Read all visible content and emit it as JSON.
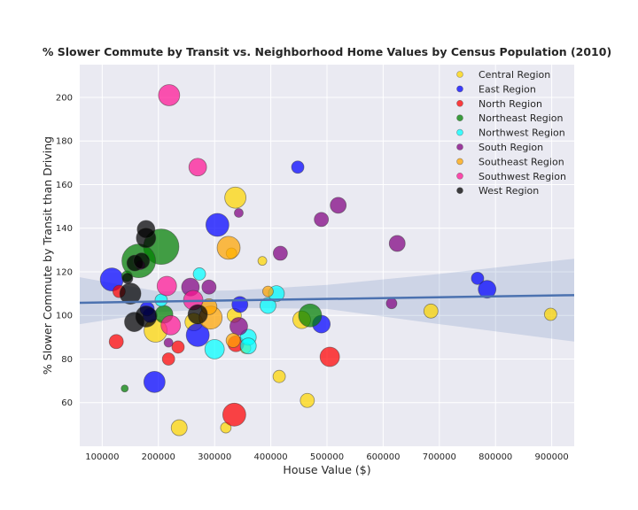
{
  "chart_data": {
    "type": "scatter",
    "title": "% Slower Commute by Transit vs. Neighborhood Home Values by Census Population (2010)",
    "xlabel": "House Value ($)",
    "ylabel": "% Slower Commute by Transit than Driving",
    "xlim": [
      60000,
      940000
    ],
    "ylim": [
      40,
      215
    ],
    "xticks": [
      100000,
      200000,
      300000,
      400000,
      500000,
      600000,
      700000,
      800000,
      900000
    ],
    "yticks": [
      60,
      80,
      100,
      120,
      140,
      160,
      180,
      200
    ],
    "grid": true,
    "legend_position": "top-right",
    "regression": {
      "x_start": 60000,
      "y_start": 105.8,
      "x_end": 940000,
      "y_end": 109.3,
      "ci_lower": [
        [
          60000,
          96
        ],
        [
          200000,
          101.5
        ],
        [
          340000,
          103.5
        ],
        [
          500000,
          103
        ],
        [
          700000,
          96
        ],
        [
          940000,
          88
        ]
      ],
      "ci_upper": [
        [
          60000,
          117.5
        ],
        [
          200000,
          111
        ],
        [
          340000,
          111.5
        ],
        [
          500000,
          114
        ],
        [
          700000,
          119
        ],
        [
          940000,
          126
        ]
      ]
    },
    "series": [
      {
        "name": "Central Region",
        "color": "#FFD700",
        "points": [
          [
            320000,
            48.5,
            6
          ],
          [
            237000,
            48.5,
            9
          ],
          [
            465000,
            61,
            8
          ],
          [
            415000,
            72,
            7
          ],
          [
            685000,
            102,
            8
          ],
          [
            898000,
            100.5,
            7
          ],
          [
            385000,
            125,
            5
          ],
          [
            355000,
            85,
            6
          ],
          [
            455000,
            98,
            10
          ],
          [
            195000,
            93,
            13
          ],
          [
            263000,
            97,
            10
          ],
          [
            330000,
            128.5,
            6
          ],
          [
            335000,
            100,
            8
          ],
          [
            337000,
            154,
            12
          ]
        ]
      },
      {
        "name": "East Region",
        "color": "#0000FF",
        "points": [
          [
            193000,
            69.5,
            12
          ],
          [
            270000,
            91,
            13
          ],
          [
            345000,
            105,
            9
          ],
          [
            490000,
            96,
            10
          ],
          [
            185000,
            100,
            8
          ],
          [
            180000,
            103,
            8
          ],
          [
            117000,
            116.5,
            13
          ],
          [
            305000,
            141.5,
            13
          ],
          [
            448000,
            168,
            7
          ],
          [
            768000,
            117,
            7
          ],
          [
            785000,
            112,
            10
          ]
        ]
      },
      {
        "name": "North Region",
        "color": "#FF0000",
        "points": [
          [
            335000,
            54.5,
            13
          ],
          [
            505000,
            81,
            11
          ],
          [
            218000,
            80,
            7
          ],
          [
            125000,
            88,
            8
          ],
          [
            235000,
            85.5,
            7
          ],
          [
            338000,
            87,
            9
          ],
          [
            130000,
            111,
            7
          ]
        ]
      },
      {
        "name": "Northeast Region",
        "color": "#008000",
        "points": [
          [
            140000,
            66.5,
            4
          ],
          [
            470000,
            100,
            13
          ],
          [
            210000,
            100.5,
            10
          ],
          [
            205000,
            131.5,
            20
          ],
          [
            165000,
            125,
            19
          ],
          [
            144000,
            118,
            6
          ]
        ]
      },
      {
        "name": "Northwest Region",
        "color": "#00FFFF",
        "points": [
          [
            300000,
            84.5,
            11
          ],
          [
            360000,
            90,
            9
          ],
          [
            360000,
            86,
            9
          ],
          [
            395000,
            104.5,
            9
          ],
          [
            410000,
            110,
            9
          ],
          [
            205000,
            107,
            7
          ],
          [
            273000,
            119,
            7
          ]
        ]
      },
      {
        "name": "South Region",
        "color": "#800080",
        "points": [
          [
            218000,
            87.5,
            5
          ],
          [
            343000,
            95,
            10
          ],
          [
            257000,
            113,
            10
          ],
          [
            290000,
            113,
            8
          ],
          [
            615000,
            105.5,
            6
          ],
          [
            417000,
            128.5,
            8
          ],
          [
            490000,
            144,
            8
          ],
          [
            520000,
            150.5,
            9
          ],
          [
            625000,
            133,
            9
          ],
          [
            343000,
            147,
            5
          ],
          [
            168000,
            123,
            5
          ]
        ]
      },
      {
        "name": "Southeast Region",
        "color": "#FFA500",
        "points": [
          [
            333000,
            88.5,
            8
          ],
          [
            293000,
            99,
            13
          ],
          [
            395000,
            111,
            6
          ],
          [
            325000,
            131,
            13
          ],
          [
            290000,
            104,
            9
          ]
        ]
      },
      {
        "name": "Southwest Region",
        "color": "#FF1493",
        "points": [
          [
            222000,
            95.5,
            11
          ],
          [
            262000,
            107,
            11
          ],
          [
            215000,
            113.5,
            11
          ],
          [
            270000,
            168,
            10
          ],
          [
            219000,
            201,
            12
          ]
        ]
      },
      {
        "name": "West Region",
        "color": "#000000",
        "points": [
          [
            157000,
            97,
            11
          ],
          [
            178000,
            99.5,
            12
          ],
          [
            270000,
            100.5,
            11
          ],
          [
            145000,
            117,
            6
          ],
          [
            150000,
            110,
            12
          ],
          [
            158000,
            124,
            9
          ],
          [
            170000,
            125,
            9
          ],
          [
            178000,
            135.5,
            11
          ],
          [
            178000,
            139.5,
            10
          ]
        ]
      }
    ]
  }
}
